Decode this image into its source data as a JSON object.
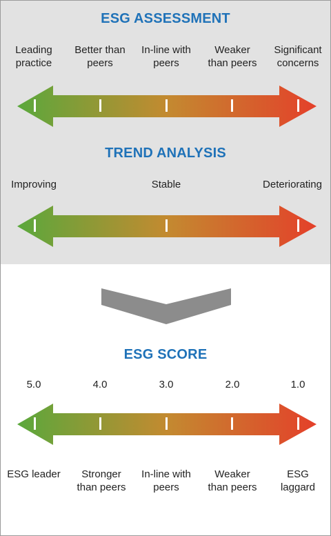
{
  "colors": {
    "heading": "#1f72b8",
    "gradient_start": "#5aa83c",
    "gradient_mid": "#c38a30",
    "gradient_end": "#e4402a",
    "panel": "#e2e2e2",
    "chevron": "#8c8c8c"
  },
  "assessment": {
    "title": "ESG ASSESSMENT",
    "labels": [
      [
        "Leading",
        "practice"
      ],
      [
        "Better than",
        "peers"
      ],
      [
        "In-line with",
        "peers"
      ],
      [
        "Weaker",
        "than peers"
      ],
      [
        "Significant",
        "concerns"
      ]
    ]
  },
  "trend": {
    "title": "TREND ANALYSIS",
    "labels": [
      "Improving",
      "Stable",
      "Deteriorating"
    ]
  },
  "score": {
    "title": "ESG SCORE",
    "values": [
      "5.0",
      "4.0",
      "3.0",
      "2.0",
      "1.0"
    ],
    "labels": [
      [
        "ESG leader"
      ],
      [
        "Stronger",
        "than peers"
      ],
      [
        "In-line with",
        "peers"
      ],
      [
        "Weaker",
        "than peers"
      ],
      [
        "ESG",
        "laggard"
      ]
    ]
  }
}
